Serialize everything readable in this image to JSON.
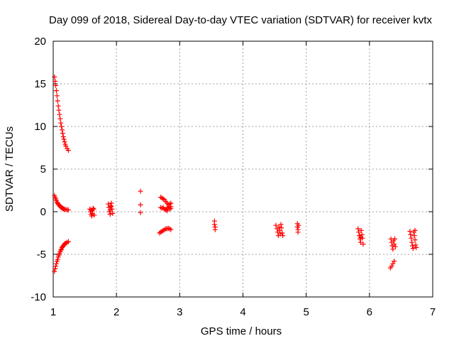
{
  "chart_data": {
    "type": "scatter",
    "title": "Day 099 of 2018, Sidereal Day-to-day VTEC variation (SDTVAR) for receiver kvtx",
    "xlabel": "GPS time / hours",
    "ylabel": "SDTVAR / TECUs",
    "xlim": [
      1,
      7
    ],
    "ylim": [
      -10,
      20
    ],
    "xticks": [
      1,
      2,
      3,
      4,
      5,
      6,
      7
    ],
    "yticks": [
      -10,
      -5,
      0,
      5,
      10,
      15,
      20
    ],
    "grid": true,
    "marker": "plus",
    "color": "#ff0000",
    "series": [
      {
        "name": "SDTVAR",
        "points": [
          [
            1.02,
            15.8
          ],
          [
            1.03,
            15.3
          ],
          [
            1.04,
            14.8
          ],
          [
            1.05,
            14.2
          ],
          [
            1.06,
            13.6
          ],
          [
            1.07,
            13.0
          ],
          [
            1.08,
            12.4
          ],
          [
            1.09,
            11.9
          ],
          [
            1.1,
            11.4
          ],
          [
            1.11,
            10.9
          ],
          [
            1.12,
            10.4
          ],
          [
            1.13,
            10.0
          ],
          [
            1.14,
            9.6
          ],
          [
            1.15,
            9.2
          ],
          [
            1.16,
            8.8
          ],
          [
            1.17,
            8.5
          ],
          [
            1.18,
            8.2
          ],
          [
            1.19,
            7.9
          ],
          [
            1.2,
            7.7
          ],
          [
            1.22,
            7.4
          ],
          [
            1.24,
            7.2
          ],
          [
            1.02,
            1.9
          ],
          [
            1.03,
            1.7
          ],
          [
            1.04,
            1.5
          ],
          [
            1.05,
            1.3
          ],
          [
            1.06,
            1.1
          ],
          [
            1.07,
            1.0
          ],
          [
            1.08,
            0.9
          ],
          [
            1.09,
            0.8
          ],
          [
            1.1,
            0.7
          ],
          [
            1.11,
            0.6
          ],
          [
            1.12,
            0.55
          ],
          [
            1.13,
            0.5
          ],
          [
            1.14,
            0.45
          ],
          [
            1.15,
            0.4
          ],
          [
            1.16,
            0.35
          ],
          [
            1.17,
            0.3
          ],
          [
            1.18,
            0.28
          ],
          [
            1.2,
            0.25
          ],
          [
            1.22,
            0.22
          ],
          [
            1.24,
            0.2
          ],
          [
            1.02,
            -7.0
          ],
          [
            1.03,
            -6.7
          ],
          [
            1.04,
            -6.4
          ],
          [
            1.05,
            -6.1
          ],
          [
            1.06,
            -5.8
          ],
          [
            1.07,
            -5.6
          ],
          [
            1.08,
            -5.3
          ],
          [
            1.09,
            -5.1
          ],
          [
            1.1,
            -4.9
          ],
          [
            1.11,
            -4.7
          ],
          [
            1.12,
            -4.5
          ],
          [
            1.13,
            -4.4
          ],
          [
            1.14,
            -4.2
          ],
          [
            1.15,
            -4.1
          ],
          [
            1.16,
            -4.0
          ],
          [
            1.17,
            -3.9
          ],
          [
            1.18,
            -3.8
          ],
          [
            1.19,
            -3.7
          ],
          [
            1.2,
            -3.7
          ],
          [
            1.22,
            -3.6
          ],
          [
            1.24,
            -3.5
          ],
          [
            1.58,
            0.3
          ],
          [
            1.59,
            0.0
          ],
          [
            1.6,
            -0.3
          ],
          [
            1.61,
            -0.5
          ],
          [
            1.62,
            0.1
          ],
          [
            1.63,
            0.4
          ],
          [
            1.64,
            0.3
          ],
          [
            1.65,
            -0.4
          ],
          [
            1.62,
            -0.2
          ],
          [
            1.6,
            0.2
          ],
          [
            1.87,
            0.9
          ],
          [
            1.88,
            0.5
          ],
          [
            1.89,
            0.0
          ],
          [
            1.9,
            -0.3
          ],
          [
            1.91,
            0.7
          ],
          [
            1.92,
            1.0
          ],
          [
            1.93,
            0.3
          ],
          [
            1.94,
            -0.2
          ],
          [
            1.92,
            0.6
          ],
          [
            1.9,
            0.2
          ],
          [
            2.38,
            2.4
          ],
          [
            2.38,
            0.8
          ],
          [
            2.38,
            -0.1
          ],
          [
            2.7,
            1.7
          ],
          [
            2.72,
            1.6
          ],
          [
            2.74,
            1.5
          ],
          [
            2.76,
            1.4
          ],
          [
            2.78,
            1.2
          ],
          [
            2.8,
            1.0
          ],
          [
            2.82,
            0.8
          ],
          [
            2.84,
            0.6
          ],
          [
            2.86,
            0.4
          ],
          [
            2.7,
            0.5
          ],
          [
            2.72,
            0.4
          ],
          [
            2.74,
            0.5
          ],
          [
            2.76,
            0.3
          ],
          [
            2.78,
            0.2
          ],
          [
            2.8,
            0.4
          ],
          [
            2.82,
            0.5
          ],
          [
            2.84,
            0.3
          ],
          [
            2.86,
            0.6
          ],
          [
            2.8,
            0.1
          ],
          [
            2.84,
            0.9
          ],
          [
            2.86,
            1.0
          ],
          [
            2.68,
            -2.5
          ],
          [
            2.7,
            -2.4
          ],
          [
            2.72,
            -2.3
          ],
          [
            2.74,
            -2.2
          ],
          [
            2.76,
            -2.1
          ],
          [
            2.78,
            -2.0
          ],
          [
            2.8,
            -2.0
          ],
          [
            2.82,
            -1.95
          ],
          [
            2.84,
            -2.0
          ],
          [
            2.86,
            -2.1
          ],
          [
            3.55,
            -1.1
          ],
          [
            3.55,
            -1.5
          ],
          [
            3.56,
            -1.8
          ],
          [
            3.56,
            -2.1
          ],
          [
            4.52,
            -1.6
          ],
          [
            4.54,
            -2.0
          ],
          [
            4.55,
            -2.4
          ],
          [
            4.56,
            -2.8
          ],
          [
            4.57,
            -1.8
          ],
          [
            4.58,
            -2.2
          ],
          [
            4.59,
            -2.6
          ],
          [
            4.6,
            -1.5
          ],
          [
            4.61,
            -1.9
          ],
          [
            4.62,
            -2.5
          ],
          [
            4.63,
            -2.8
          ],
          [
            4.86,
            -1.4
          ],
          [
            4.86,
            -1.8
          ],
          [
            4.87,
            -2.1
          ],
          [
            4.87,
            -2.4
          ],
          [
            4.88,
            -1.6
          ],
          [
            5.82,
            -2.0
          ],
          [
            5.83,
            -2.4
          ],
          [
            5.84,
            -2.8
          ],
          [
            5.85,
            -3.2
          ],
          [
            5.86,
            -3.6
          ],
          [
            5.87,
            -2.2
          ],
          [
            5.88,
            -2.7
          ],
          [
            5.89,
            -3.1
          ],
          [
            5.9,
            -3.8
          ],
          [
            5.86,
            -3.0
          ],
          [
            6.33,
            -6.6
          ],
          [
            6.35,
            -6.4
          ],
          [
            6.37,
            -6.1
          ],
          [
            6.39,
            -5.8
          ],
          [
            6.34,
            -3.2
          ],
          [
            6.35,
            -3.6
          ],
          [
            6.36,
            -4.0
          ],
          [
            6.37,
            -4.4
          ],
          [
            6.38,
            -3.4
          ],
          [
            6.39,
            -3.8
          ],
          [
            6.4,
            -3.2
          ],
          [
            6.41,
            -4.1
          ],
          [
            6.64,
            -2.3
          ],
          [
            6.65,
            -2.7
          ],
          [
            6.66,
            -3.1
          ],
          [
            6.67,
            -3.6
          ],
          [
            6.68,
            -4.0
          ],
          [
            6.69,
            -4.3
          ],
          [
            6.7,
            -2.4
          ],
          [
            6.71,
            -2.8
          ],
          [
            6.72,
            -3.3
          ],
          [
            6.73,
            -3.9
          ],
          [
            6.74,
            -4.2
          ],
          [
            6.72,
            -2.2
          ]
        ]
      }
    ]
  }
}
